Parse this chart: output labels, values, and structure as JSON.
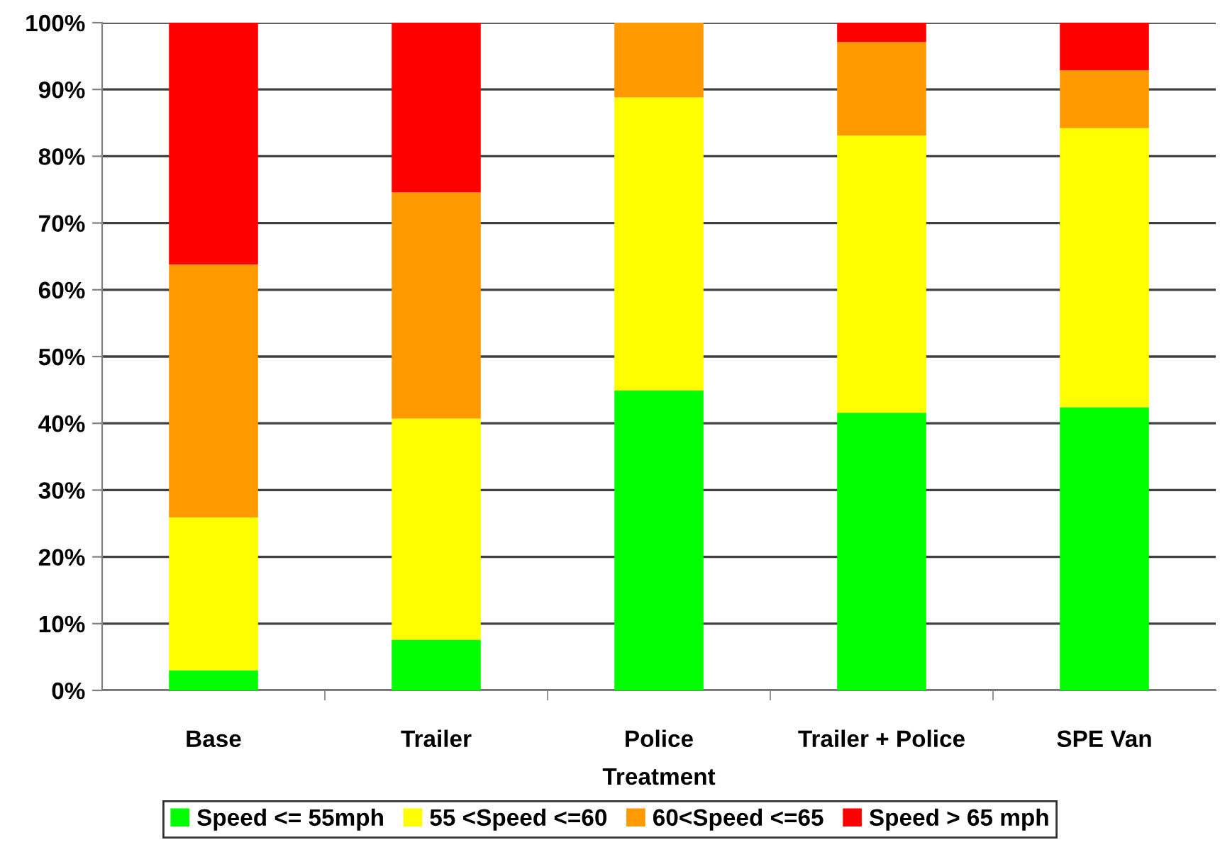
{
  "chart_data": {
    "type": "bar",
    "stacked": true,
    "xlabel": "Treatment",
    "categories": [
      "Base",
      "Trailer",
      "Police",
      "Trailer + Police",
      "SPE Van"
    ],
    "series": [
      {
        "name": "Speed <= 55mph",
        "color": "#00ff00",
        "values": [
          3.0,
          7.6,
          44.9,
          41.6,
          42.4
        ]
      },
      {
        "name": "55 <Speed <=60",
        "color": "#ffff00",
        "values": [
          22.9,
          33.1,
          43.9,
          41.5,
          41.8
        ]
      },
      {
        "name": "60<Speed <=65",
        "color": "#ff9900",
        "values": [
          37.9,
          33.9,
          11.2,
          14.0,
          8.7
        ]
      },
      {
        "name": "Speed > 65 mph",
        "color": "#ff0000",
        "values": [
          36.2,
          25.4,
          0,
          2.9,
          7.1
        ]
      }
    ],
    "ylim": [
      0,
      100
    ],
    "yticks": [
      {
        "value": 0,
        "label": "0%"
      },
      {
        "value": 10,
        "label": "10%"
      },
      {
        "value": 20,
        "label": "20%"
      },
      {
        "value": 30,
        "label": "30%"
      },
      {
        "value": 40,
        "label": "40%"
      },
      {
        "value": 50,
        "label": "50%"
      },
      {
        "value": 60,
        "label": "60%"
      },
      {
        "value": 70,
        "label": "70%"
      },
      {
        "value": 80,
        "label": "80%"
      },
      {
        "value": 90,
        "label": "90%"
      },
      {
        "value": 100,
        "label": "100%"
      }
    ],
    "grid": "y",
    "legend": "bottom"
  }
}
